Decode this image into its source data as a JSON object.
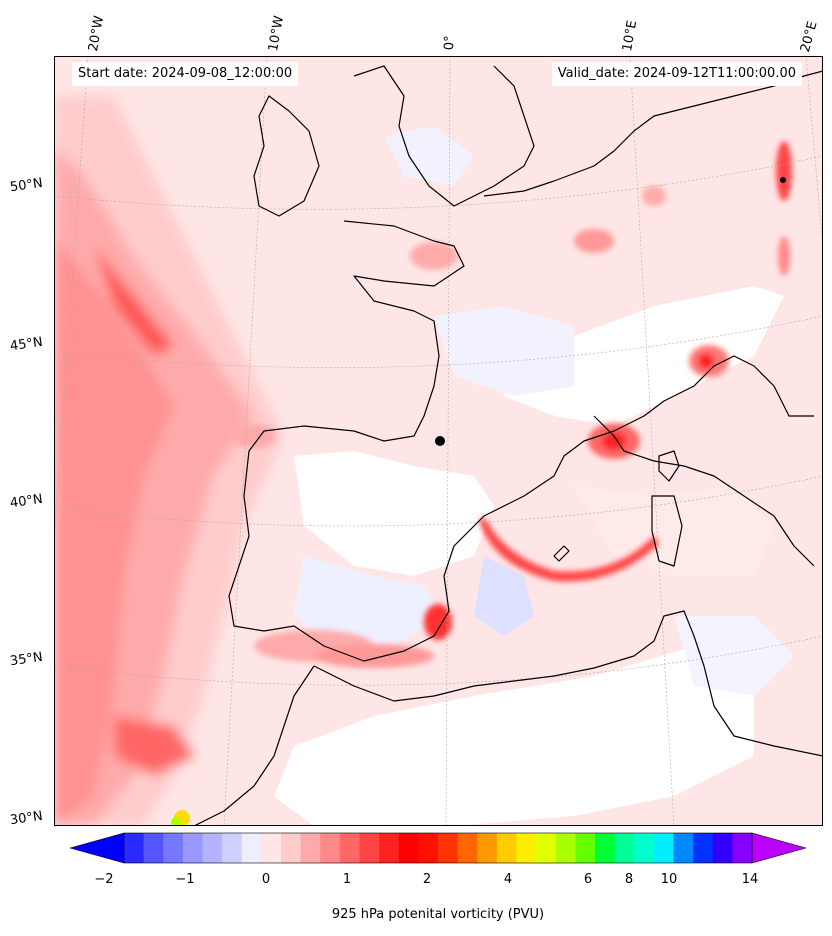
{
  "map": {
    "start_date": "Start date: 2024-09-08_12:00:00",
    "valid_date": "Valid_date: 2024-09-12T11:00:00.00",
    "lon_labels": [
      "20°W",
      "10°W",
      "0°",
      "10°E",
      "20°E"
    ],
    "lat_labels": [
      "50°N",
      "45°N",
      "40°N",
      "35°N",
      "30°N"
    ]
  },
  "colorbar": {
    "title": "925 hPa potenital vorticity (PVU)",
    "tick_labels": [
      "−2",
      "−1",
      "0",
      "1",
      "2",
      "4",
      "6",
      "8",
      "10",
      "14"
    ],
    "colors": [
      "#0000ff",
      "#2a2aff",
      "#5555ff",
      "#7777ff",
      "#9999ff",
      "#b3b3ff",
      "#d0d0ff",
      "#eeeeff",
      "#ffe6e6",
      "#ffcccc",
      "#ffaaaa",
      "#ff8888",
      "#ff6666",
      "#ff4444",
      "#ff2222",
      "#ff0000",
      "#ff1100",
      "#ff3300",
      "#ff6600",
      "#ff9900",
      "#ffcc00",
      "#ffee00",
      "#e0ff00",
      "#aaff00",
      "#66ff00",
      "#00ff33",
      "#00ff99",
      "#00ffcc",
      "#00eeff",
      "#0088ff",
      "#0033ff",
      "#3300ff",
      "#8800ff",
      "#bb00ff"
    ]
  }
}
